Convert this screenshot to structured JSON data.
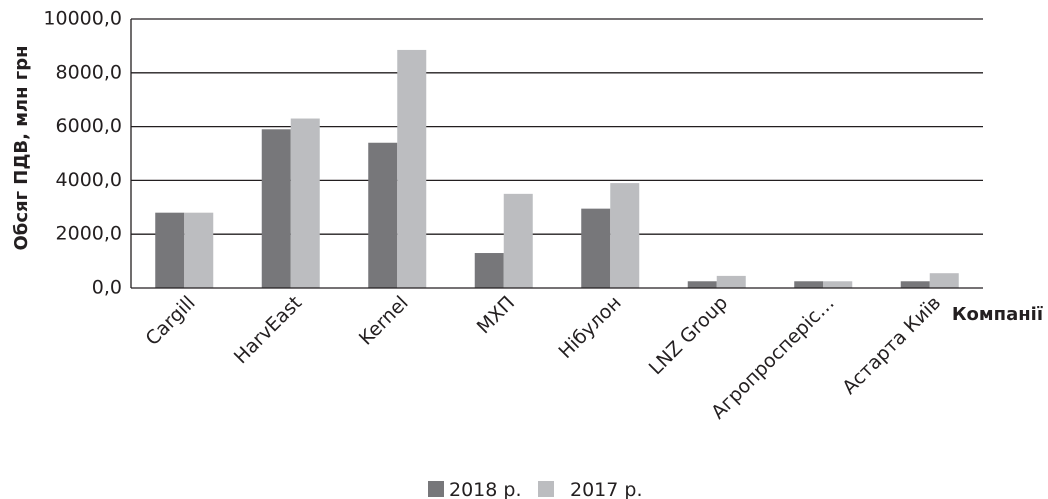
{
  "chart_data": {
    "type": "bar",
    "xlabel": "Компанії",
    "ylabel": "Обсяг ПДВ, млн грн",
    "ylim": [
      0,
      10000
    ],
    "yticks": [
      "0,0",
      "2000,0",
      "4000,0",
      "6000,0",
      "8000,0",
      "10000,0"
    ],
    "grid": true,
    "legend_position": "bottom",
    "categories": [
      "Cargill",
      "HarvEast",
      "Kernel",
      "МХП",
      "Нібулон",
      "LNZ Group",
      "Агропросперіс…",
      "Астарта Київ"
    ],
    "series": [
      {
        "name": "2018 р.",
        "color": "#77777a",
        "values": [
          2800,
          5900,
          5400,
          1300,
          2950,
          250,
          250,
          250
        ]
      },
      {
        "name": "2017 р.",
        "color": "#bcbdc0",
        "values": [
          2800,
          6300,
          8850,
          3500,
          3900,
          450,
          250,
          550
        ]
      }
    ]
  }
}
